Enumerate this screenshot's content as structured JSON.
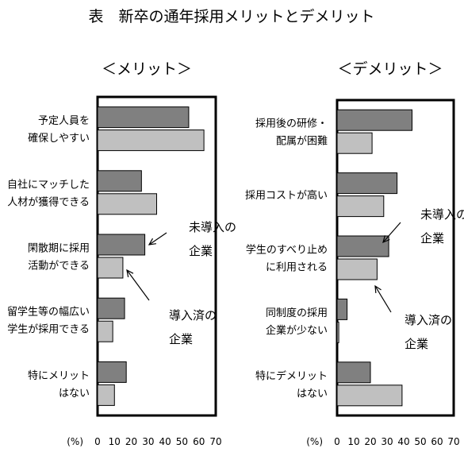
{
  "title": "表　新卒の通年採用メリットとデメリット",
  "colors": {
    "non_adopted": "#808080",
    "adopted": "#c0c0c0",
    "stroke": "#000000"
  },
  "chart_data": [
    {
      "type": "bar",
      "orientation": "horizontal",
      "subtitle": "＜メリット＞",
      "unit_label": "(%)",
      "xlim": [
        0,
        70
      ],
      "ticks": [
        "0",
        "10",
        "20",
        "30",
        "40",
        "50",
        "60",
        "70"
      ],
      "categories": [
        [
          "予定人員を",
          "確保しやすい"
        ],
        [
          "自社にマッチした",
          "人材が獲得できる"
        ],
        [
          "閑散期に採用",
          "活動ができる"
        ],
        [
          "留学生等の幅広い",
          "学生が採用できる"
        ],
        [
          "特にメリット",
          "はない"
        ]
      ],
      "series": [
        {
          "name": "未導入の企業",
          "values": [
            54,
            26,
            28,
            16,
            17
          ]
        },
        {
          "name": "導入済の企業",
          "values": [
            63,
            35,
            15,
            9,
            10
          ]
        }
      ],
      "annotations": [
        {
          "lines": [
            "未導入の",
            "企業"
          ],
          "series": 0,
          "category": 2
        },
        {
          "lines": [
            "導入済の",
            "企業"
          ],
          "series": 1,
          "category": 2
        }
      ]
    },
    {
      "type": "bar",
      "orientation": "horizontal",
      "subtitle": "＜デメリット＞",
      "unit_label": "(%)",
      "xlim": [
        0,
        70
      ],
      "ticks": [
        "0",
        "10",
        "20",
        "30",
        "40",
        "50",
        "60",
        "70"
      ],
      "categories": [
        [
          "採用後の研修・",
          "配属が困難"
        ],
        [
          "採用コストが高い"
        ],
        [
          "学生のすべり止め",
          "に利用される"
        ],
        [
          "同制度の採用",
          "企業が少ない"
        ],
        [
          "特にデメリット",
          "はない"
        ]
      ],
      "series": [
        {
          "name": "未導入の企業",
          "values": [
            45,
            36,
            31,
            6,
            20
          ]
        },
        {
          "name": "導入済の企業",
          "values": [
            21,
            28,
            24,
            1,
            39
          ]
        }
      ],
      "annotations": [
        {
          "lines": [
            "未導入の",
            "企業"
          ],
          "series": 0,
          "category": 2
        },
        {
          "lines": [
            "導入済の",
            "企業"
          ],
          "series": 1,
          "category": 2
        }
      ]
    }
  ]
}
